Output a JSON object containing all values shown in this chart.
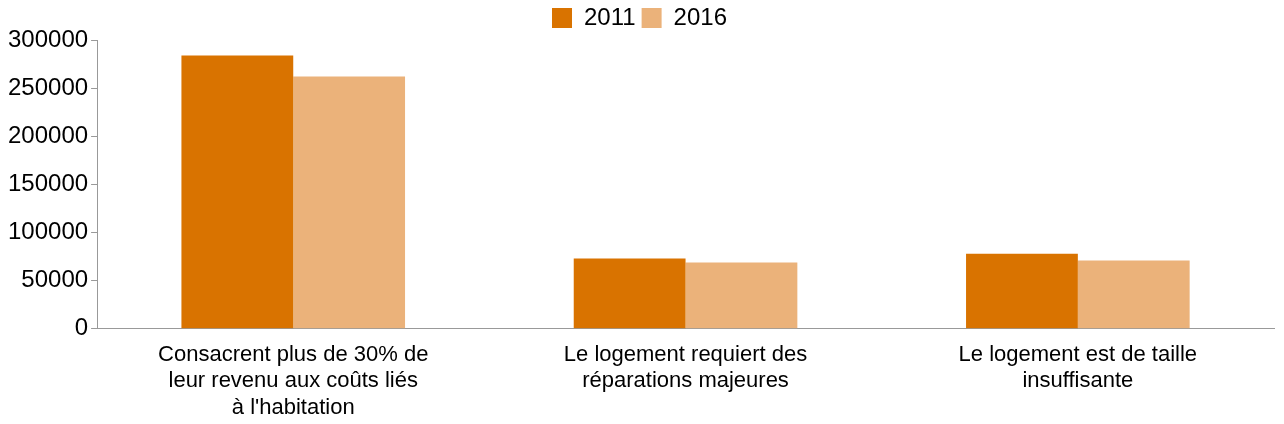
{
  "chart_data": {
    "type": "bar",
    "categories": [
      "Consacrent plus de 30% de leur revenu aux coûts liés à l'habitation",
      "Le logement requiert des réparations majeures",
      "Le logement est de taille insuffisante"
    ],
    "series": [
      {
        "name": "2011",
        "color": "#d97300",
        "values": [
          284000,
          73000,
          78000
        ]
      },
      {
        "name": "2016",
        "color": "#ebb27a",
        "values": [
          262000,
          69000,
          71000
        ]
      }
    ],
    "ylim": [
      0,
      300000
    ],
    "yticks": [
      0,
      50000,
      100000,
      150000,
      200000,
      250000,
      300000
    ],
    "grid": false,
    "legend": "top"
  }
}
